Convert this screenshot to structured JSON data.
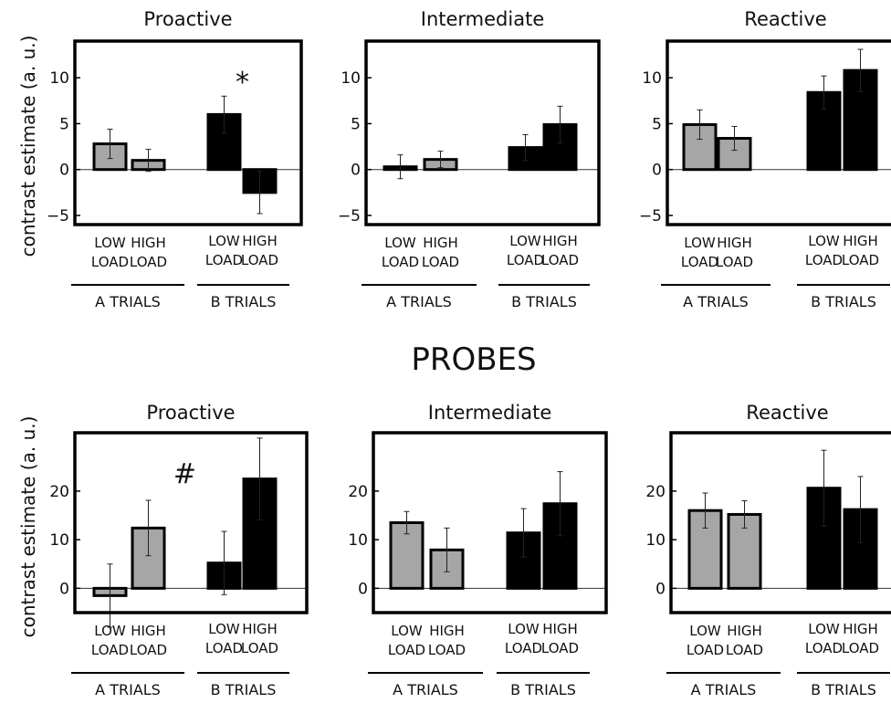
{
  "figure": {
    "section_title": "PROBES",
    "row_ylabel": "contrast estimate (a. u.)",
    "colors": {
      "a_trials": "#a6a6a6",
      "b_trials": "#000000",
      "frame": "#000000"
    }
  },
  "chart_data": [
    {
      "type": "bar",
      "title": "Proactive",
      "ylim": [
        -6,
        14
      ],
      "yticks": [
        -5,
        0,
        5,
        10
      ],
      "categories": [
        "LOW\nLOAD",
        "HIGH\nLOAD",
        "LOW\nLOAD",
        "HIGH\nLOAD"
      ],
      "groups": [
        "A TRIALS",
        "B TRIALS"
      ],
      "values": [
        2.8,
        1.0,
        6.0,
        -2.5
      ],
      "errors": [
        1.6,
        1.2,
        2.0,
        2.3
      ],
      "annotation": "*",
      "annotation_bar": 2
    },
    {
      "type": "bar",
      "title": "Intermediate",
      "ylim": [
        -6,
        14
      ],
      "yticks": [
        -5,
        0,
        5,
        10
      ],
      "categories": [
        "LOW\nLOAD",
        "HIGH\nLOAD",
        "LOW\nLOAD",
        "HIGH\nLOAD"
      ],
      "groups": [
        "A TRIALS",
        "B TRIALS"
      ],
      "values": [
        0.3,
        1.1,
        2.4,
        4.9
      ],
      "errors": [
        1.3,
        0.9,
        1.4,
        2.0
      ]
    },
    {
      "type": "bar",
      "title": "Reactive",
      "ylim": [
        -6,
        14
      ],
      "yticks": [
        -5,
        0,
        5,
        10
      ],
      "categories": [
        "LOW\nLOAD",
        "HIGH\nLOAD",
        "LOW\nLOAD",
        "HIGH\nLOAD"
      ],
      "groups": [
        "A TRIALS",
        "B TRIALS"
      ],
      "values": [
        4.9,
        3.4,
        8.4,
        10.8
      ],
      "errors": [
        1.6,
        1.3,
        1.8,
        2.3
      ]
    },
    {
      "type": "bar",
      "title": "Proactive",
      "ylim": [
        -5,
        32
      ],
      "yticks": [
        0,
        10,
        20
      ],
      "categories": [
        "LOW\nLOAD",
        "HIGH\nLOAD",
        "LOW\nLOAD",
        "HIGH\nLOAD"
      ],
      "groups": [
        "A TRIALS",
        "B TRIALS"
      ],
      "values": [
        -1.5,
        12.4,
        5.2,
        22.5
      ],
      "errors": [
        6.5,
        5.7,
        6.5,
        8.4
      ],
      "annotation": "#",
      "annotation_bar": 1
    },
    {
      "type": "bar",
      "title": "Intermediate",
      "ylim": [
        -5,
        32
      ],
      "yticks": [
        0,
        10,
        20
      ],
      "categories": [
        "LOW\nLOAD",
        "HIGH\nLOAD",
        "LOW\nLOAD",
        "HIGH\nLOAD"
      ],
      "groups": [
        "A TRIALS",
        "B TRIALS"
      ],
      "values": [
        13.5,
        7.9,
        11.4,
        17.4
      ],
      "errors": [
        2.3,
        4.5,
        5.0,
        6.6
      ]
    },
    {
      "type": "bar",
      "title": "Reactive",
      "ylim": [
        -5,
        32
      ],
      "yticks": [
        0,
        10,
        20
      ],
      "categories": [
        "LOW\nLOAD",
        "HIGH\nLOAD",
        "LOW\nLOAD",
        "HIGH\nLOAD"
      ],
      "groups": [
        "A TRIALS",
        "B TRIALS"
      ],
      "values": [
        16.0,
        15.2,
        20.6,
        16.2
      ],
      "errors": [
        3.6,
        2.8,
        7.8,
        6.8
      ]
    }
  ]
}
